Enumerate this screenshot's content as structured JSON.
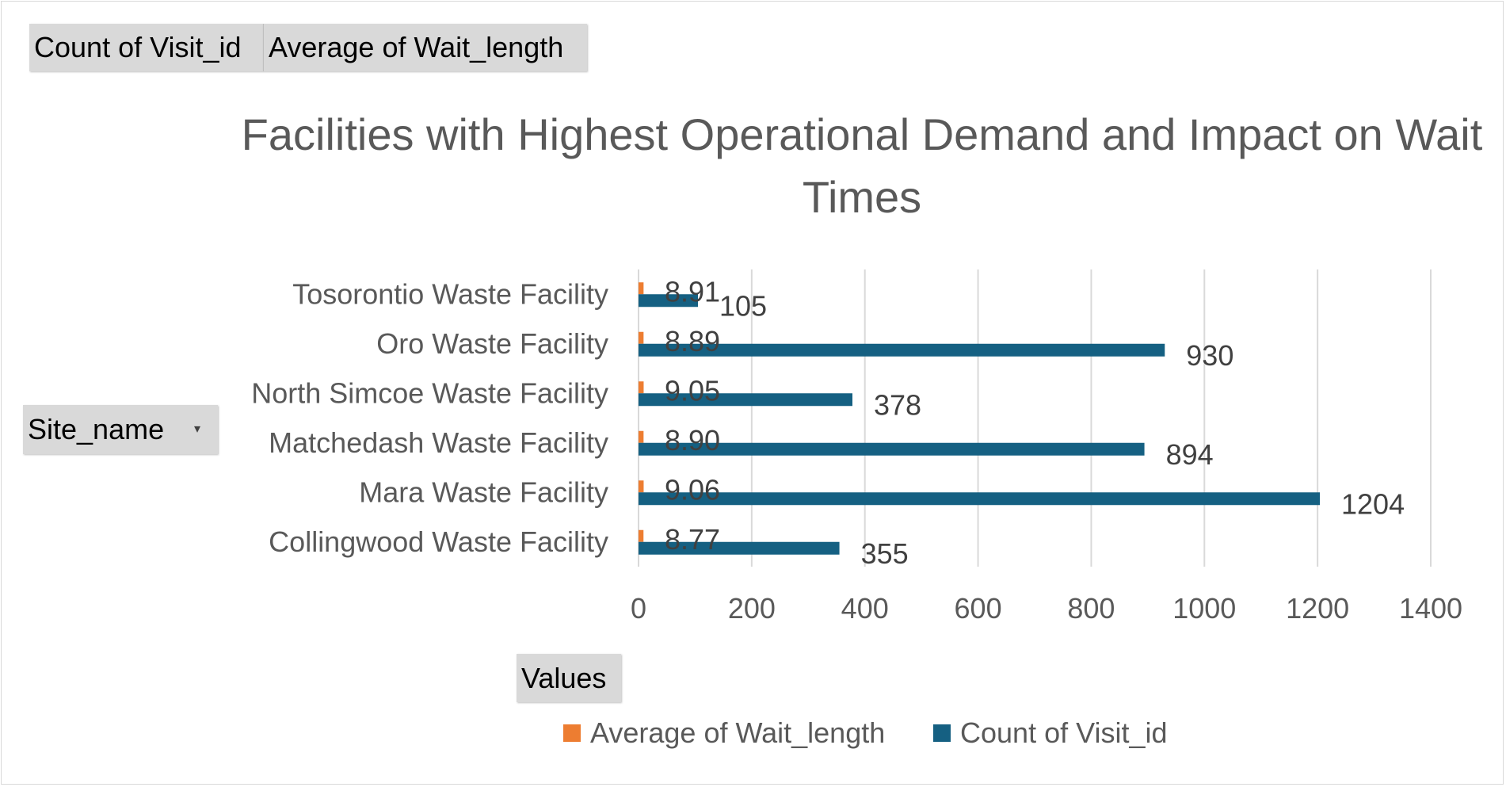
{
  "pivot_fields": {
    "values": [
      "Count of Visit_id",
      "Average of Wait_length"
    ],
    "rows": "Site_name",
    "axis_values_label": "Values"
  },
  "colors": {
    "avg": "#ED7D31",
    "count": "#156082",
    "text": "#595959",
    "grid": "#d9d9d9"
  },
  "chart_data": {
    "type": "bar",
    "orientation": "horizontal",
    "title": "Facilities with Highest Operational Demand and Impact on Wait Times",
    "categories": [
      "Tosorontio Waste Facility",
      "Oro Waste Facility",
      "North Simcoe Waste Facility",
      "Matchedash Waste Facility",
      "Mara Waste Facility",
      "Collingwood Waste Facility"
    ],
    "series": [
      {
        "name": "Average of Wait_length",
        "values": [
          8.91,
          8.89,
          9.05,
          8.9,
          9.06,
          8.77
        ],
        "labels": [
          "8.91",
          "8.89",
          "9.05",
          "8.90",
          "9.06",
          "8.77"
        ]
      },
      {
        "name": "Count of Visit_id",
        "values": [
          105,
          930,
          378,
          894,
          1204,
          355
        ],
        "labels": [
          "105",
          "930",
          "378",
          "894",
          "1204",
          "355"
        ]
      }
    ],
    "xlim": [
      0,
      1400
    ],
    "xticks": [
      "0",
      "200",
      "400",
      "600",
      "800",
      "1000",
      "1200",
      "1400"
    ],
    "grid": true,
    "legend": [
      "Average of Wait_length",
      "Count of Visit_id"
    ],
    "legend_position": "bottom"
  }
}
